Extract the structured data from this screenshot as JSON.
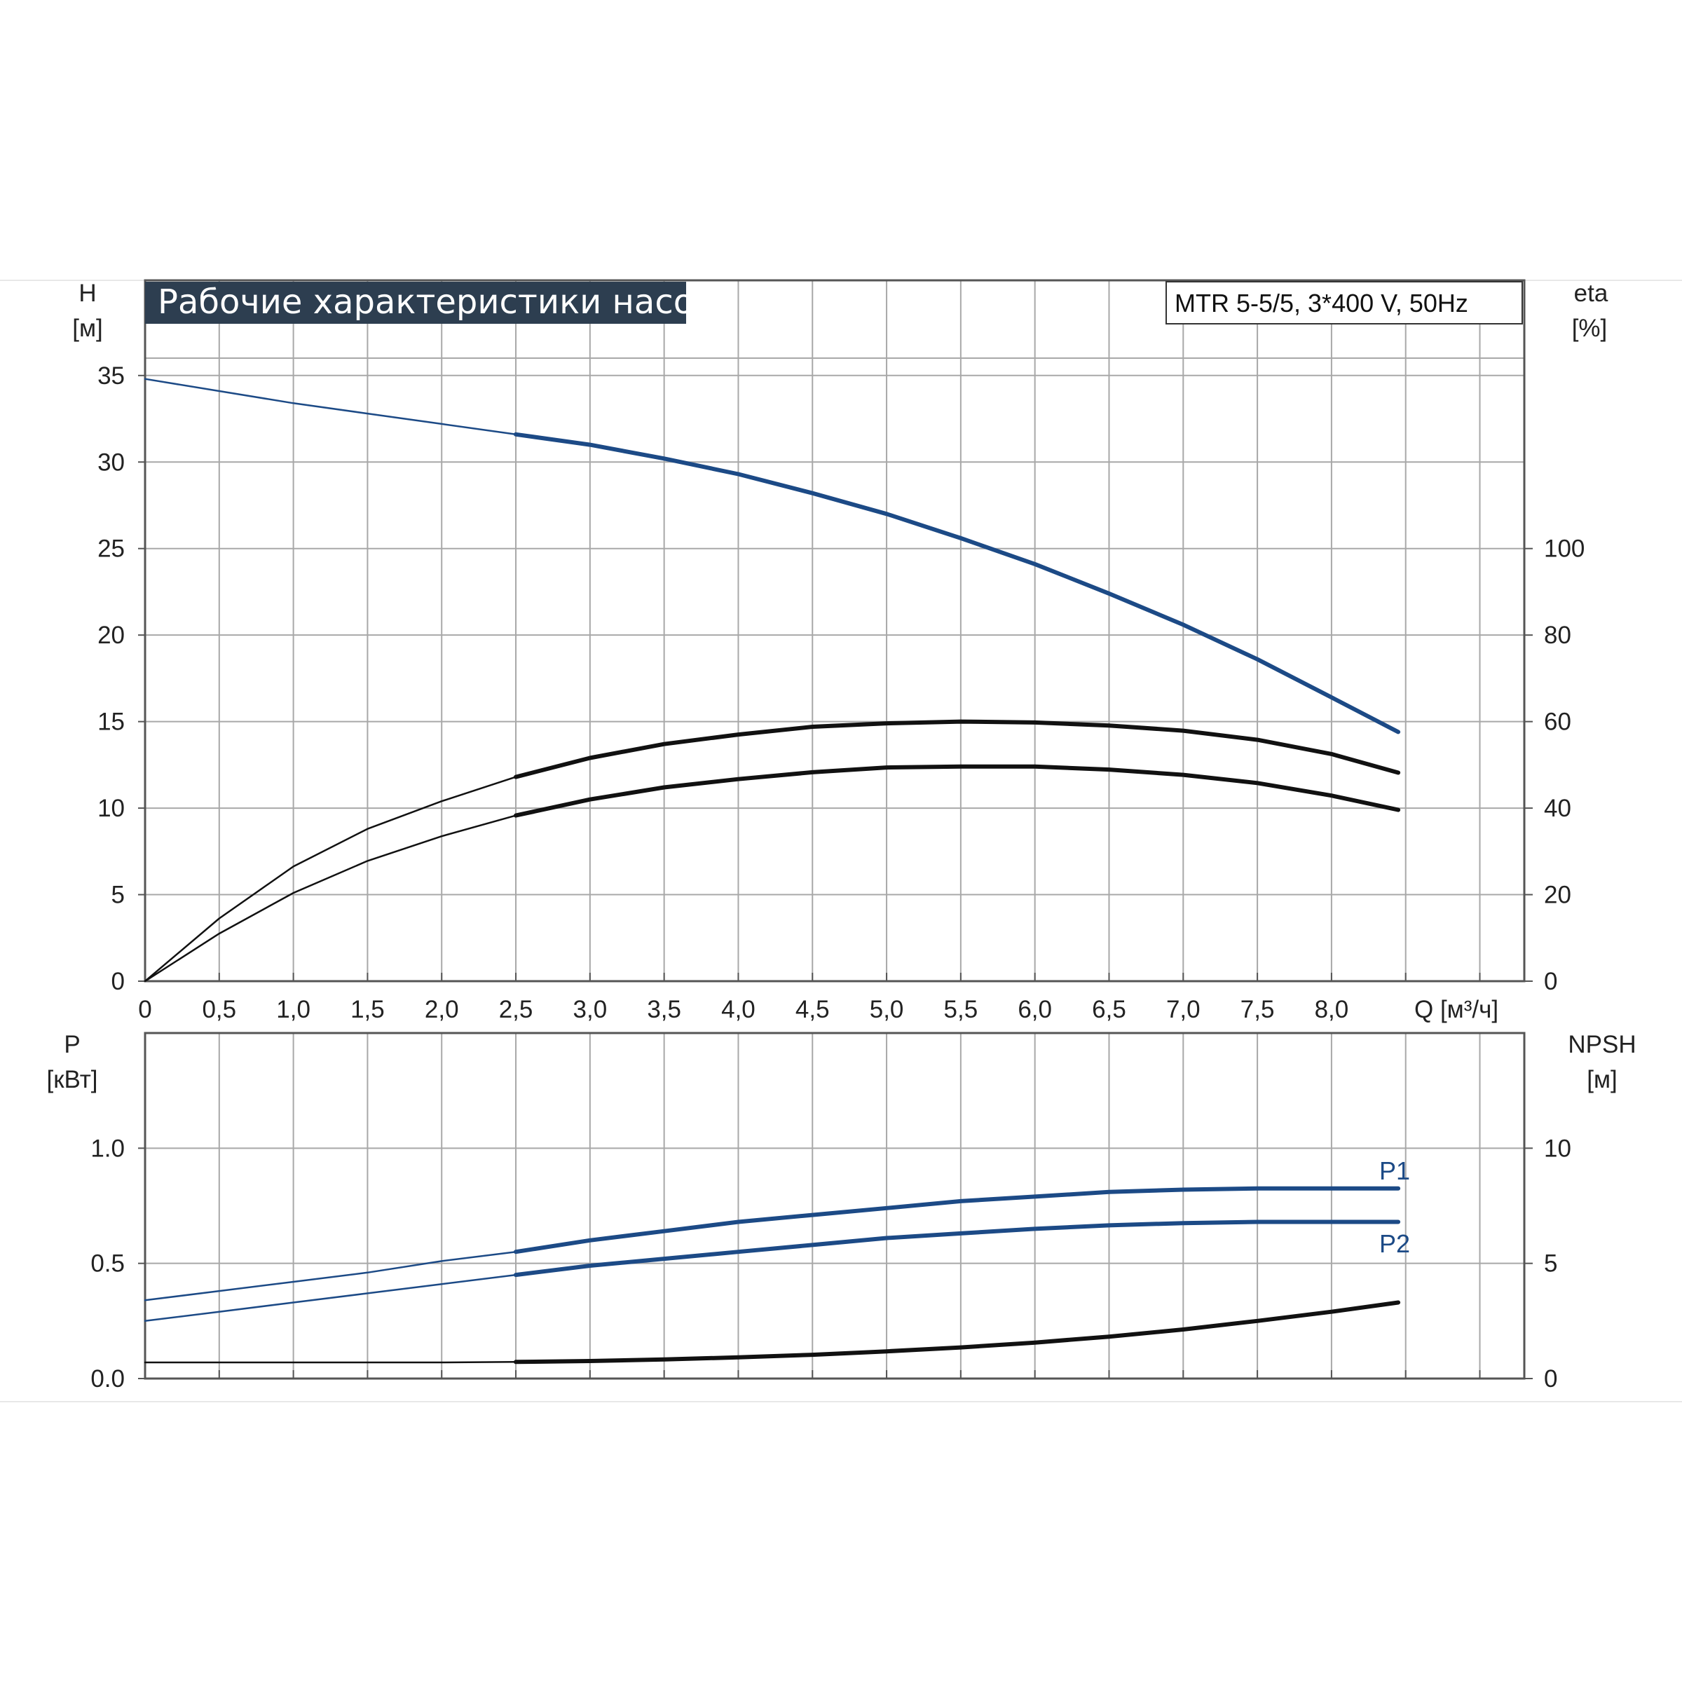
{
  "title": "Рабочие характеристики насоса",
  "model": "MTR 5-5/5, 3*400 V, 50Hz",
  "colors": {
    "blue": "#1c4a86",
    "black": "#111111",
    "grid": "#a8a8a8",
    "title_bg": "#2d3e50"
  },
  "chart_data": [
    {
      "type": "line",
      "name": "top-panel",
      "xlabel": "Q [м³/ч]",
      "x_ticks": [
        "0",
        "0,5",
        "1,0",
        "1,5",
        "2,0",
        "2,5",
        "3,0",
        "3,5",
        "4,0",
        "4,5",
        "5,0",
        "5,5",
        "6,0",
        "6,5",
        "7,0",
        "7,5",
        "8,0"
      ],
      "xlim": [
        0,
        9.3
      ],
      "y_left": {
        "label_line1": "H",
        "label_line2": "[м]",
        "ticks": [
          "0",
          "5",
          "10",
          "15",
          "20",
          "25",
          "30",
          "35"
        ],
        "ylim": [
          0,
          40.5
        ]
      },
      "y_right": {
        "label_line1": "eta",
        "label_line2": "[%]",
        "ticks": [
          "0",
          "20",
          "40",
          "60",
          "80",
          "100"
        ],
        "ylim": [
          0,
          162
        ]
      },
      "grid": true,
      "series": [
        {
          "name": "H",
          "axis": "left",
          "color": "#1c4a86",
          "x": [
            0,
            0.5,
            1.0,
            1.5,
            2.0,
            2.5,
            3.0,
            3.5,
            4.0,
            4.5,
            5.0,
            5.5,
            6.0,
            6.5,
            7.0,
            7.5,
            8.0,
            8.45
          ],
          "y": [
            34.8,
            34.1,
            33.4,
            32.8,
            32.2,
            31.6,
            31.0,
            30.2,
            29.3,
            28.2,
            27.0,
            25.6,
            24.1,
            22.4,
            20.6,
            18.6,
            16.4,
            14.4
          ]
        },
        {
          "name": "eta-upper",
          "axis": "right",
          "color": "#111111",
          "x": [
            0,
            0.5,
            1.0,
            1.5,
            2.0,
            2.5,
            3.0,
            3.5,
            4.0,
            4.5,
            5.0,
            5.5,
            6.0,
            6.5,
            7.0,
            7.5,
            8.0,
            8.45
          ],
          "y": [
            0,
            14.5,
            26.5,
            35.2,
            41.6,
            47.2,
            51.6,
            54.8,
            57.0,
            58.8,
            59.6,
            60.0,
            59.8,
            59.1,
            57.9,
            55.8,
            52.5,
            48.2
          ]
        },
        {
          "name": "eta-lower",
          "axis": "right",
          "color": "#111111",
          "x": [
            0,
            0.5,
            1.0,
            1.5,
            2.0,
            2.5,
            3.0,
            3.5,
            4.0,
            4.5,
            5.0,
            5.5,
            6.0,
            6.5,
            7.0,
            7.5,
            8.0,
            8.45
          ],
          "y": [
            0,
            11.0,
            20.4,
            27.8,
            33.5,
            38.3,
            42.0,
            44.8,
            46.7,
            48.3,
            49.4,
            49.6,
            49.6,
            48.9,
            47.7,
            45.8,
            42.9,
            39.6
          ]
        }
      ]
    },
    {
      "type": "line",
      "name": "bottom-panel",
      "xlim": [
        0,
        9.3
      ],
      "y_left": {
        "label_line1": "P",
        "label_line2": "[кВт]",
        "ticks": [
          "0.0",
          "0.5",
          "1.0"
        ],
        "ylim": [
          0,
          1.5
        ]
      },
      "y_right": {
        "label_line1": "NPSH",
        "label_line2": "[м]",
        "ticks": [
          "0",
          "5",
          "10"
        ],
        "ylim": [
          0,
          15
        ]
      },
      "grid": true,
      "series": [
        {
          "name": "P1",
          "axis": "left",
          "color": "#1c4a86",
          "x": [
            0,
            0.5,
            1.0,
            1.5,
            2.0,
            2.5,
            3.0,
            3.5,
            4.0,
            4.5,
            5.0,
            5.5,
            6.0,
            6.5,
            7.0,
            7.5,
            8.0,
            8.45
          ],
          "y": [
            0.34,
            0.38,
            0.42,
            0.46,
            0.51,
            0.55,
            0.6,
            0.64,
            0.68,
            0.71,
            0.74,
            0.77,
            0.79,
            0.81,
            0.82,
            0.825,
            0.825,
            0.825
          ]
        },
        {
          "name": "P2",
          "axis": "left",
          "color": "#1c4a86",
          "x": [
            0,
            0.5,
            1.0,
            1.5,
            2.0,
            2.5,
            3.0,
            3.5,
            4.0,
            4.5,
            5.0,
            5.5,
            6.0,
            6.5,
            7.0,
            7.5,
            8.0,
            8.45
          ],
          "y": [
            0.25,
            0.29,
            0.33,
            0.37,
            0.41,
            0.45,
            0.49,
            0.52,
            0.55,
            0.58,
            0.61,
            0.63,
            0.65,
            0.665,
            0.675,
            0.68,
            0.68,
            0.68
          ]
        },
        {
          "name": "NPSH",
          "axis": "right",
          "color": "#111111",
          "x": [
            0,
            0.5,
            1.0,
            1.5,
            2.0,
            2.5,
            3.0,
            3.5,
            4.0,
            4.5,
            5.0,
            5.5,
            6.0,
            6.5,
            7.0,
            7.5,
            8.0,
            8.45
          ],
          "y": [
            0.7,
            0.7,
            0.7,
            0.7,
            0.7,
            0.72,
            0.76,
            0.83,
            0.92,
            1.03,
            1.18,
            1.35,
            1.56,
            1.82,
            2.13,
            2.5,
            2.9,
            3.3
          ]
        }
      ]
    }
  ]
}
